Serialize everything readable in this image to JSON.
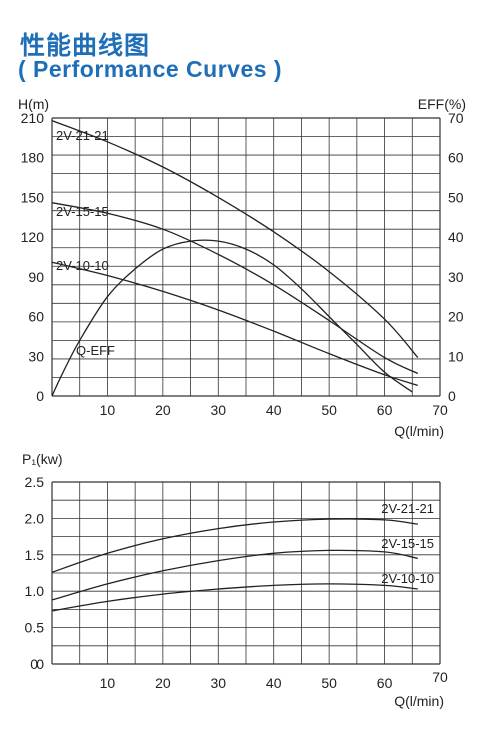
{
  "title_cn": "性能曲线图",
  "title_en": "( Performance Curves )",
  "colors": {
    "title": "#1f6fb8",
    "grid": "#333333",
    "curve": "#222222"
  },
  "chart_data": [
    {
      "type": "line",
      "ylabel_left": "H(m)",
      "ylabel_right": "EFF(%)",
      "xlabel": "Q(l/min)",
      "xlim": [
        0,
        70
      ],
      "ylim_left": [
        0,
        210
      ],
      "ylim_right": [
        0,
        70
      ],
      "x_ticks": [
        10,
        20,
        30,
        40,
        50,
        60,
        70
      ],
      "y_left_ticks": [
        0,
        30,
        60,
        90,
        120,
        150,
        180,
        210
      ],
      "y_right_ticks": [
        0,
        10,
        20,
        30,
        40,
        50,
        60,
        70
      ],
      "grid": true,
      "series": [
        {
          "name": "2V-21-21",
          "axis": "left",
          "x": [
            0,
            10,
            20,
            30,
            40,
            50,
            60,
            66
          ],
          "y": [
            208,
            192,
            173,
            150,
            124,
            94,
            58,
            29
          ]
        },
        {
          "name": "2V-15-15",
          "axis": "left",
          "x": [
            0,
            10,
            20,
            30,
            40,
            50,
            60,
            66
          ],
          "y": [
            146,
            138,
            126,
            107,
            84,
            57,
            29,
            17
          ]
        },
        {
          "name": "2V-10-10",
          "axis": "left",
          "x": [
            0,
            10,
            20,
            30,
            40,
            50,
            60,
            66
          ],
          "y": [
            101,
            91,
            79,
            65,
            49,
            32,
            16,
            8
          ]
        },
        {
          "name": "Q-EFF",
          "axis": "right",
          "x": [
            0,
            2,
            5,
            10,
            15,
            20,
            25,
            30,
            35,
            40,
            45,
            50,
            55,
            60,
            65
          ],
          "y": [
            0,
            6,
            14,
            25,
            32,
            37,
            39,
            39,
            37,
            33,
            27,
            20,
            13,
            6,
            1
          ]
        }
      ]
    },
    {
      "type": "line",
      "ylabel": "P₁(kw)",
      "xlabel": "Q(l/min)",
      "xlim": [
        0,
        70
      ],
      "ylim": [
        0,
        2.5
      ],
      "x_ticks": [
        0,
        10,
        20,
        30,
        40,
        50,
        60,
        70
      ],
      "y_ticks": [
        "0",
        "0.5",
        "1.0",
        "1.5",
        "2.0",
        "2.5"
      ],
      "grid": true,
      "series": [
        {
          "name": "2V-21-21",
          "x": [
            0,
            10,
            20,
            30,
            40,
            50,
            60,
            66
          ],
          "y": [
            1.26,
            1.52,
            1.72,
            1.86,
            1.95,
            1.99,
            1.98,
            1.92
          ]
        },
        {
          "name": "2V-15-15",
          "x": [
            0,
            10,
            20,
            30,
            40,
            50,
            60,
            66
          ],
          "y": [
            0.88,
            1.1,
            1.28,
            1.42,
            1.52,
            1.56,
            1.54,
            1.45
          ]
        },
        {
          "name": "2V-10-10",
          "x": [
            0,
            10,
            20,
            30,
            40,
            50,
            60,
            66
          ],
          "y": [
            0.73,
            0.86,
            0.96,
            1.03,
            1.08,
            1.1,
            1.08,
            1.03
          ]
        }
      ]
    }
  ]
}
